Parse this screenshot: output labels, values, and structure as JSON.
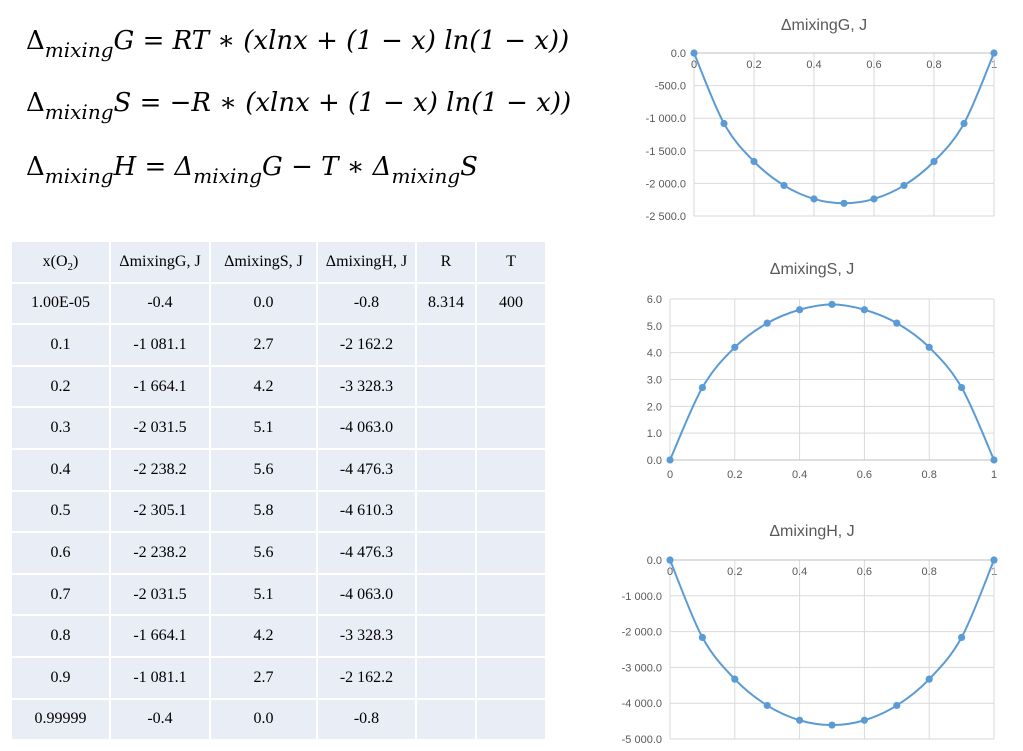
{
  "formulas": {
    "g": {
      "lhs_sym": "Δ",
      "lhs_sub": "mixing",
      "lhs_var": "G",
      "rhs": "= RT ∗ (xlnx + (1 − x) ln(1 − x))"
    },
    "s": {
      "lhs_sym": "Δ",
      "lhs_sub": "mixing",
      "lhs_var": "S",
      "rhs": "= −R ∗ (xlnx + (1 − x) ln(1 − x))"
    },
    "h": {
      "lhs_sym": "Δ",
      "lhs_sub": "mixing",
      "lhs_var": "H",
      "rhs_a": "= Δ",
      "rhs_a_sub": "mixing",
      "rhs_a_var": "G  − T ∗ Δ",
      "rhs_b_sub": "mixing",
      "rhs_b_var": "S"
    }
  },
  "table": {
    "headers": [
      "x(O",
      "2",
      ")",
      "ΔmixingG, J",
      "ΔmixingS, J",
      "ΔmixingH, J",
      "R",
      "T"
    ],
    "rows": [
      [
        "1.00E-05",
        "-0.4",
        "0.0",
        "-0.8",
        "8.314",
        "400"
      ],
      [
        "0.1",
        "-1 081.1",
        "2.7",
        "-2 162.2",
        "",
        ""
      ],
      [
        "0.2",
        "-1 664.1",
        "4.2",
        "-3 328.3",
        "",
        ""
      ],
      [
        "0.3",
        "-2 031.5",
        "5.1",
        "-4 063.0",
        "",
        ""
      ],
      [
        "0.4",
        "-2 238.2",
        "5.6",
        "-4 476.3",
        "",
        ""
      ],
      [
        "0.5",
        "-2 305.1",
        "5.8",
        "-4 610.3",
        "",
        ""
      ],
      [
        "0.6",
        "-2 238.2",
        "5.6",
        "-4 476.3",
        "",
        ""
      ],
      [
        "0.7",
        "-2 031.5",
        "5.1",
        "-4 063.0",
        "",
        ""
      ],
      [
        "0.8",
        "-1 664.1",
        "4.2",
        "-3 328.3",
        "",
        ""
      ],
      [
        "0.9",
        "-1 081.1",
        "2.7",
        "-2 162.2",
        "",
        ""
      ],
      [
        "0.99999",
        "-0.4",
        "0.0",
        "-0.8",
        "",
        ""
      ]
    ]
  },
  "chart_data": [
    {
      "type": "line",
      "title": "ΔmixingG, J",
      "x": [
        1e-05,
        0.1,
        0.2,
        0.3,
        0.4,
        0.5,
        0.6,
        0.7,
        0.8,
        0.9,
        0.99999
      ],
      "series": [
        {
          "values": [
            -0.4,
            -1081.1,
            -1664.1,
            -2031.5,
            -2238.2,
            -2305.1,
            -2238.2,
            -2031.5,
            -1664.1,
            -1081.1,
            -0.4
          ]
        }
      ],
      "xlim": [
        0,
        1
      ],
      "ylim": [
        -2500,
        0
      ],
      "xticks": [
        "0",
        "0.2",
        "0.4",
        "0.6",
        "0.8",
        "1"
      ],
      "yticks": [
        "0.0",
        "-500.0",
        "-1 000.0",
        "-1 500.0",
        "-2 000.0",
        "-2 500.0"
      ],
      "grid": true,
      "x_axis_at": "top",
      "color": "#5b9bd5"
    },
    {
      "type": "line",
      "title": "ΔmixingS, J",
      "x": [
        1e-05,
        0.1,
        0.2,
        0.3,
        0.4,
        0.5,
        0.6,
        0.7,
        0.8,
        0.9,
        0.99999
      ],
      "series": [
        {
          "values": [
            0.0,
            2.7,
            4.2,
            5.1,
            5.6,
            5.8,
            5.6,
            5.1,
            4.2,
            2.7,
            0.0
          ]
        }
      ],
      "xlim": [
        0,
        1
      ],
      "ylim": [
        0,
        6
      ],
      "xticks": [
        "0",
        "0.2",
        "0.4",
        "0.6",
        "0.8",
        "1"
      ],
      "yticks": [
        "6.0",
        "5.0",
        "4.0",
        "3.0",
        "2.0",
        "1.0",
        "0.0"
      ],
      "grid": true,
      "x_axis_at": "bottom",
      "color": "#5b9bd5"
    },
    {
      "type": "line",
      "title": "ΔmixingH, J",
      "x": [
        1e-05,
        0.1,
        0.2,
        0.3,
        0.4,
        0.5,
        0.6,
        0.7,
        0.8,
        0.9,
        0.99999
      ],
      "series": [
        {
          "values": [
            -0.8,
            -2162.2,
            -3328.3,
            -4063.0,
            -4476.3,
            -4610.3,
            -4476.3,
            -4063.0,
            -3328.3,
            -2162.2,
            -0.8
          ]
        }
      ],
      "xlim": [
        0,
        1
      ],
      "ylim": [
        -5000,
        0
      ],
      "xticks": [
        "0",
        "0.2",
        "0.4",
        "0.6",
        "0.8",
        "1"
      ],
      "yticks": [
        "0.0",
        "-1 000.0",
        "-2 000.0",
        "-3 000.0",
        "-4 000.0",
        "-5 000.0"
      ],
      "grid": true,
      "x_axis_at": "top",
      "color": "#5b9bd5"
    }
  ]
}
